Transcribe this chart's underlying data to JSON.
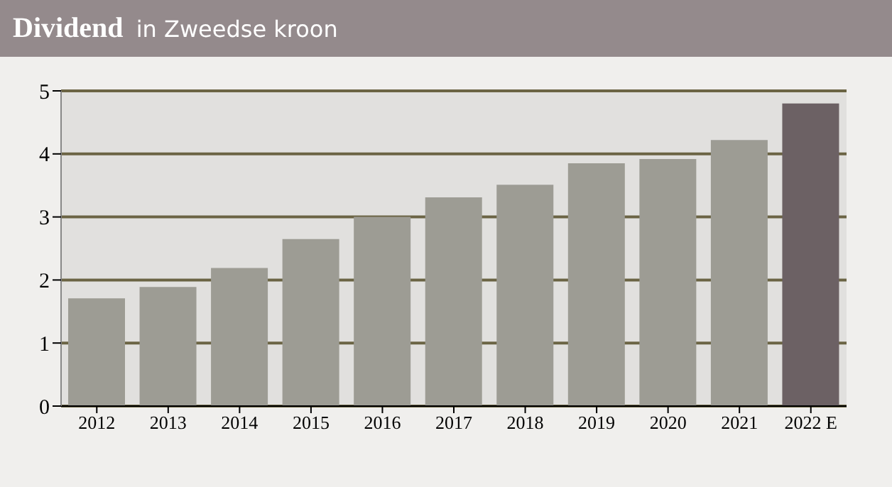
{
  "chart_data": {
    "type": "bar",
    "title": "Dividend",
    "subtitle": "in Zweedse kroon",
    "categories": [
      "2012",
      "2013",
      "2014",
      "2015",
      "2016",
      "2017",
      "2018",
      "2019",
      "2020",
      "2021",
      "2022 E"
    ],
    "values": [
      1.71,
      1.89,
      2.19,
      2.65,
      3.0,
      3.31,
      3.51,
      3.85,
      3.92,
      4.22,
      4.8
    ],
    "colors": [
      "#9d9c94",
      "#9d9c94",
      "#9d9c94",
      "#9d9c94",
      "#9d9c94",
      "#9d9c94",
      "#9d9c94",
      "#9d9c94",
      "#9d9c94",
      "#9d9c94",
      "#6c6164"
    ],
    "ylim": [
      0,
      5
    ],
    "yticks": [
      0,
      1,
      2,
      3,
      4,
      5
    ],
    "grid": "y"
  }
}
